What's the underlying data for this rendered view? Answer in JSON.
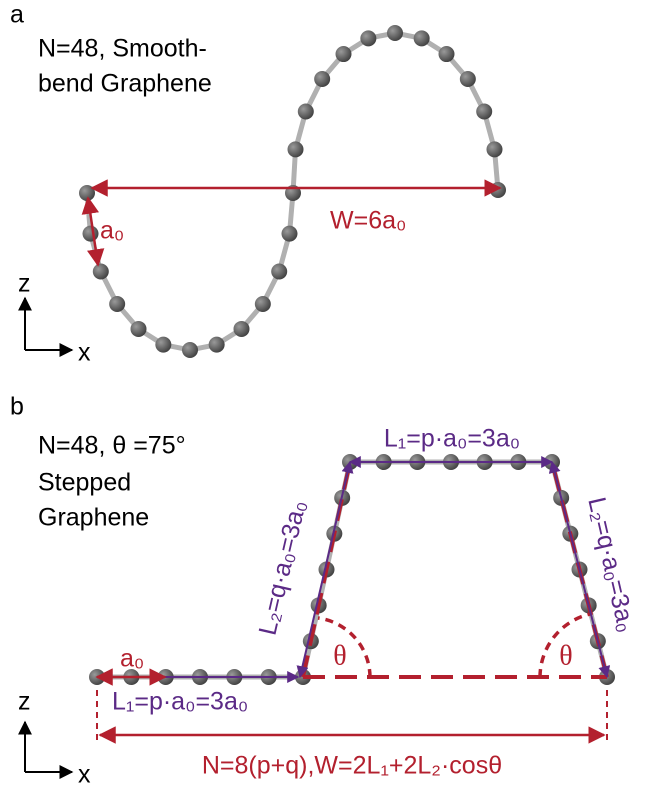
{
  "panel_a": {
    "label": "a",
    "title_lines": [
      "N=48, Smooth-",
      "bend Graphene"
    ],
    "a0_label": "a₀",
    "width_label": "W=6a₀",
    "z_label": "z",
    "x_label": "x"
  },
  "panel_b": {
    "label": "b",
    "title_lines": [
      "N=48, θ =75°",
      "Stepped",
      "Graphene"
    ],
    "a0_label": "a₀",
    "l1_bottom": "L₁=p·a₀=3a₀",
    "l1_top": "L₁=p·a₀=3a₀",
    "l2_left": "L₂=q·a₀=3a₀",
    "l2_right": "L₂=q·a₀=3a₀",
    "theta_left": "θ",
    "theta_right": "θ",
    "formula": "N=8(p+q),W=2L₁+2L₂·cosθ",
    "z_label": "z",
    "x_label": "x"
  }
}
